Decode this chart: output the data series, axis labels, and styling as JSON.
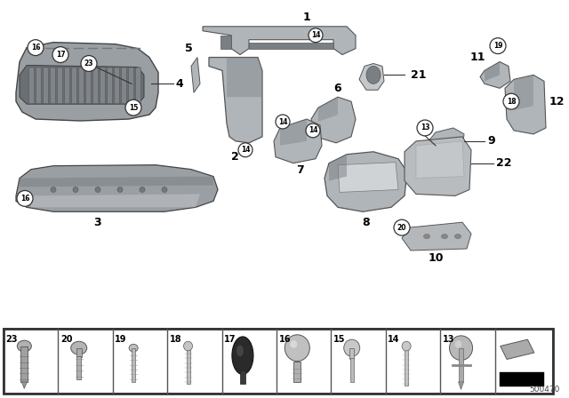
{
  "figsize": [
    6.4,
    4.48
  ],
  "dpi": 100,
  "bg": "#ffffff",
  "diagram_number": "500470",
  "part_color": "#b0b5ba",
  "part_edge": "#555555",
  "shadow_color": "#888888",
  "dark_part": "#7a7f84",
  "light_part": "#d0d3d6"
}
